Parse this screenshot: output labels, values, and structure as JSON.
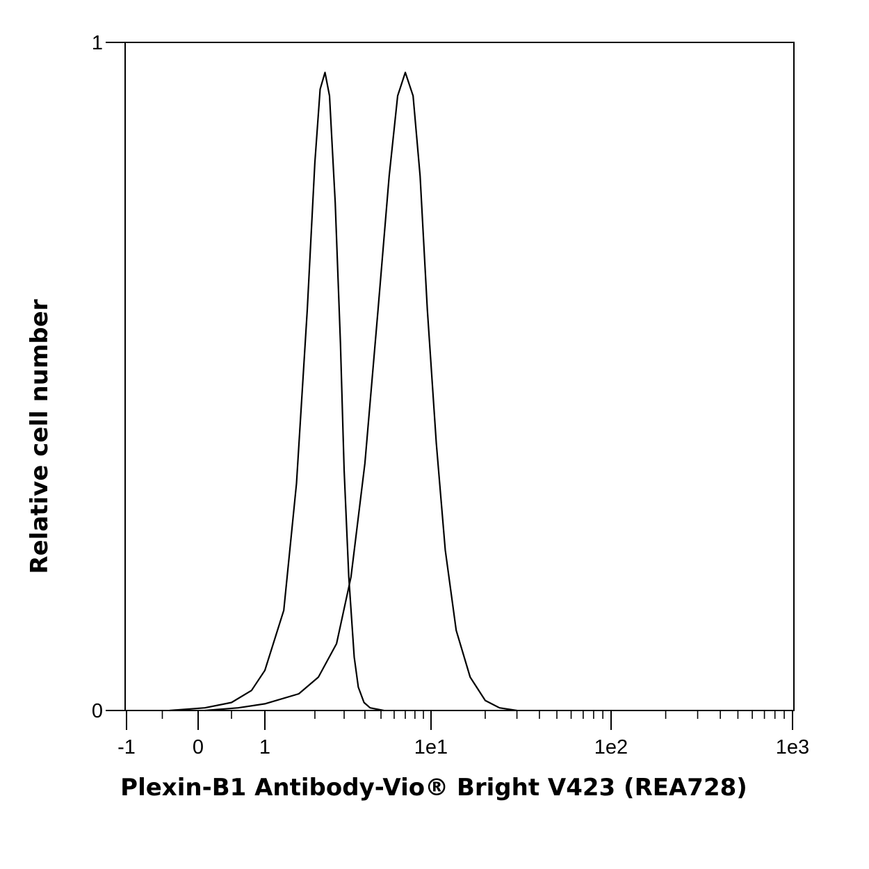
{
  "chart_data": {
    "type": "histogram-overlay",
    "title": "",
    "xlabel": "Plexin-B1 Antibody-Vio® Bright V423 (REA728)",
    "ylabel": "Relative cell number",
    "x_scale": "biexponential",
    "x_ticks": [
      "-1",
      "0",
      "1",
      "1e1",
      "1e2",
      "1e3"
    ],
    "x_tick_values": [
      -1,
      0,
      1,
      10,
      100,
      1000
    ],
    "y_ticks": [
      "1",
      "0"
    ],
    "y_tick_values": [
      1,
      0
    ],
    "xlim": [
      -1,
      1000
    ],
    "ylim": [
      0,
      1
    ],
    "grid": false,
    "legend": "none",
    "line_color": "#000000",
    "series": [
      {
        "peak_x": 2.3,
        "peak_y": 0.955,
        "x": [
          -0.4,
          0.1,
          0.5,
          0.8,
          1.0,
          1.3,
          1.55,
          1.8,
          2.0,
          2.15,
          2.3,
          2.45,
          2.65,
          2.85,
          3.0,
          3.2,
          3.45,
          3.65,
          3.95,
          4.3,
          5.2
        ],
        "y": [
          0.0,
          0.004,
          0.012,
          0.03,
          0.06,
          0.15,
          0.34,
          0.6,
          0.82,
          0.93,
          0.955,
          0.92,
          0.76,
          0.55,
          0.36,
          0.2,
          0.08,
          0.035,
          0.012,
          0.004,
          0.0
        ]
      },
      {
        "peak_x": 7.0,
        "peak_y": 0.955,
        "x": [
          0.1,
          0.6,
          1.0,
          1.6,
          2.1,
          2.7,
          3.3,
          4.0,
          4.8,
          5.6,
          6.3,
          7.0,
          7.8,
          8.6,
          9.5,
          10.7,
          12.0,
          13.8,
          16.5,
          20.0,
          24.0,
          30.0
        ],
        "y": [
          0.0,
          0.004,
          0.01,
          0.025,
          0.05,
          0.1,
          0.2,
          0.37,
          0.6,
          0.8,
          0.92,
          0.955,
          0.92,
          0.8,
          0.6,
          0.4,
          0.24,
          0.12,
          0.05,
          0.015,
          0.004,
          0.0
        ]
      }
    ]
  }
}
